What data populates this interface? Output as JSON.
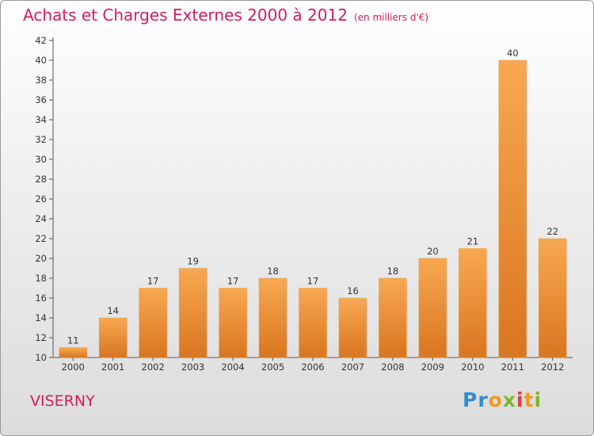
{
  "header": {
    "title": "Achats et Charges Externes 2000 à 2012",
    "unit": "(en milliers d'€)"
  },
  "commune": "VISERNY",
  "logo": {
    "letters": [
      {
        "ch": "P",
        "color": "#2e8fd0"
      },
      {
        "ch": "r",
        "color": "#2e8fd0"
      },
      {
        "ch": "o",
        "color": "#f29a1f"
      },
      {
        "ch": "x",
        "color": "#7cb928"
      },
      {
        "ch": "i",
        "color": "#e23a3a"
      },
      {
        "ch": "t",
        "color": "#f29a1f"
      },
      {
        "ch": "i",
        "color": "#7cb928"
      }
    ]
  },
  "chart_data": {
    "type": "bar",
    "title": "Achats et Charges Externes 2000 à 2012",
    "categories": [
      "2000",
      "2001",
      "2002",
      "2003",
      "2004",
      "2005",
      "2006",
      "2007",
      "2008",
      "2009",
      "2010",
      "2011",
      "2012"
    ],
    "values": [
      11,
      14,
      17,
      19,
      17,
      18,
      17,
      16,
      18,
      20,
      21,
      40,
      22
    ],
    "ylim": [
      10,
      42
    ],
    "yticks": [
      10,
      12,
      14,
      16,
      18,
      20,
      22,
      24,
      26,
      28,
      30,
      32,
      34,
      36,
      38,
      40,
      42
    ],
    "grid": false,
    "bar_color_top": "#f8a852",
    "bar_color_bottom": "#d9761f"
  }
}
